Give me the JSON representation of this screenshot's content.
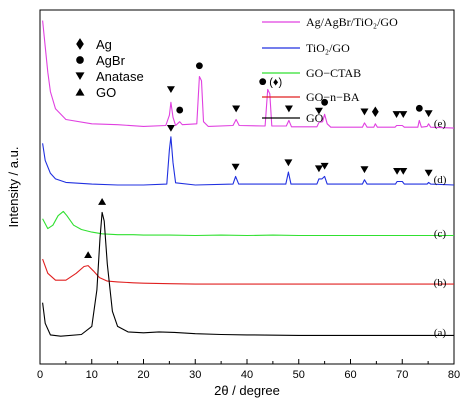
{
  "chart_data": {
    "type": "line",
    "xlabel": "2θ / degree",
    "ylabel": "Intensity / a.u.",
    "xlim": [
      0,
      80
    ],
    "xticks": [
      "0",
      "10",
      "20",
      "30",
      "40",
      "50",
      "60",
      "70",
      "80"
    ],
    "legend_position": "top-right",
    "grid": false,
    "series": [
      {
        "name": "Ag/AgBr/TiO₂/GO",
        "color": "#e040e0",
        "curve_label": "(e)",
        "offset": 4,
        "points": [
          [
            0.5,
            2.8
          ],
          [
            1,
            2.2
          ],
          [
            1.5,
            1.6
          ],
          [
            2,
            1.15
          ],
          [
            3,
            0.75
          ],
          [
            5,
            0.5
          ],
          [
            10,
            0.4
          ],
          [
            15,
            0.38
          ],
          [
            20,
            0.34
          ],
          [
            24.3,
            0.36
          ],
          [
            25.0,
            0.6
          ],
          [
            25.3,
            0.9
          ],
          [
            25.7,
            0.55
          ],
          [
            26.2,
            0.36
          ],
          [
            27.0,
            0.45
          ],
          [
            27.5,
            0.38
          ],
          [
            30.3,
            0.4
          ],
          [
            30.8,
            1.5
          ],
          [
            31.2,
            1.4
          ],
          [
            31.6,
            0.45
          ],
          [
            32.5,
            0.34
          ],
          [
            37.3,
            0.36
          ],
          [
            37.9,
            0.5
          ],
          [
            38.5,
            0.36
          ],
          [
            43.5,
            0.35
          ],
          [
            44.0,
            1.2
          ],
          [
            44.4,
            1.1
          ],
          [
            44.8,
            0.35
          ],
          [
            47.6,
            0.35
          ],
          [
            48.1,
            0.48
          ],
          [
            48.6,
            0.33
          ],
          [
            53.5,
            0.33
          ],
          [
            53.9,
            0.43
          ],
          [
            54.6,
            0.45
          ],
          [
            55.0,
            0.62
          ],
          [
            55.5,
            0.4
          ],
          [
            56.2,
            0.32
          ],
          [
            62.3,
            0.32
          ],
          [
            62.7,
            0.42
          ],
          [
            63.2,
            0.32
          ],
          [
            64.5,
            0.32
          ],
          [
            64.8,
            0.4
          ],
          [
            65.2,
            0.32
          ],
          [
            68.6,
            0.32
          ],
          [
            68.9,
            0.36
          ],
          [
            70.0,
            0.36
          ],
          [
            70.4,
            0.32
          ],
          [
            73.0,
            0.32
          ],
          [
            73.3,
            0.48
          ],
          [
            73.7,
            0.32
          ],
          [
            74.8,
            0.34
          ],
          [
            75.1,
            0.4
          ],
          [
            75.5,
            0.32
          ],
          [
            80,
            0.3
          ]
        ]
      },
      {
        "name": "TiO₂/GO",
        "color": "#2030e0",
        "curve_label": "(d)",
        "offset": 3,
        "points": [
          [
            0.5,
            1.25
          ],
          [
            1,
            0.85
          ],
          [
            2,
            0.55
          ],
          [
            3,
            0.42
          ],
          [
            5,
            0.34
          ],
          [
            10,
            0.3
          ],
          [
            15,
            0.28
          ],
          [
            20,
            0.28
          ],
          [
            24.5,
            0.3
          ],
          [
            25.0,
            1.1
          ],
          [
            25.3,
            1.4
          ],
          [
            25.7,
            0.8
          ],
          [
            26.2,
            0.33
          ],
          [
            30,
            0.28
          ],
          [
            37.3,
            0.3
          ],
          [
            37.8,
            0.48
          ],
          [
            38.4,
            0.3
          ],
          [
            47.5,
            0.3
          ],
          [
            48.0,
            0.58
          ],
          [
            48.5,
            0.3
          ],
          [
            53.5,
            0.3
          ],
          [
            53.9,
            0.42
          ],
          [
            54.5,
            0.42
          ],
          [
            55.0,
            0.48
          ],
          [
            55.5,
            0.3
          ],
          [
            62.3,
            0.3
          ],
          [
            62.7,
            0.4
          ],
          [
            63.2,
            0.3
          ],
          [
            68.7,
            0.3
          ],
          [
            69.0,
            0.36
          ],
          [
            70.0,
            0.36
          ],
          [
            70.4,
            0.3
          ],
          [
            74.8,
            0.3
          ],
          [
            75.1,
            0.34
          ],
          [
            75.5,
            0.3
          ],
          [
            80,
            0.28
          ]
        ]
      },
      {
        "name": "GO−CTAB",
        "color": "#30e030",
        "curve_label": "(c)",
        "offset": 2,
        "points": [
          [
            0.5,
            0.75
          ],
          [
            1.5,
            0.52
          ],
          [
            2.5,
            0.6
          ],
          [
            3.5,
            0.82
          ],
          [
            4.5,
            0.92
          ],
          [
            5.2,
            0.82
          ],
          [
            6.5,
            0.6
          ],
          [
            8,
            0.5
          ],
          [
            10,
            0.44
          ],
          [
            12,
            0.4
          ],
          [
            15,
            0.38
          ],
          [
            18,
            0.38
          ],
          [
            20,
            0.37
          ],
          [
            25,
            0.37
          ],
          [
            30,
            0.36
          ],
          [
            35,
            0.37
          ],
          [
            40,
            0.36
          ],
          [
            45,
            0.37
          ],
          [
            50,
            0.36
          ],
          [
            55,
            0.36
          ],
          [
            60,
            0.36
          ],
          [
            65,
            0.36
          ],
          [
            70,
            0.36
          ],
          [
            75,
            0.36
          ],
          [
            80,
            0.36
          ]
        ]
      },
      {
        "name": "GO−n−BA",
        "color": "#e02020",
        "curve_label": "(b)",
        "offset": 1,
        "points": [
          [
            0.5,
            0.95
          ],
          [
            1.5,
            0.62
          ],
          [
            3,
            0.46
          ],
          [
            5,
            0.46
          ],
          [
            7,
            0.62
          ],
          [
            8.5,
            0.78
          ],
          [
            9.3,
            0.8
          ],
          [
            10.3,
            0.68
          ],
          [
            11.5,
            0.52
          ],
          [
            13,
            0.44
          ],
          [
            15,
            0.42
          ],
          [
            18,
            0.4
          ],
          [
            20,
            0.39
          ],
          [
            25,
            0.38
          ],
          [
            30,
            0.37
          ],
          [
            35,
            0.37
          ],
          [
            40,
            0.37
          ],
          [
            45,
            0.37
          ],
          [
            50,
            0.37
          ],
          [
            55,
            0.37
          ],
          [
            60,
            0.37
          ],
          [
            65,
            0.37
          ],
          [
            70,
            0.37
          ],
          [
            75,
            0.37
          ],
          [
            80,
            0.37
          ]
        ]
      },
      {
        "name": "GO",
        "color": "#000000",
        "curve_label": "(a)",
        "offset": 0,
        "points": [
          [
            0.5,
            1.1
          ],
          [
            1,
            0.62
          ],
          [
            2,
            0.35
          ],
          [
            4,
            0.32
          ],
          [
            8,
            0.36
          ],
          [
            10,
            0.55
          ],
          [
            11,
            1.4
          ],
          [
            11.6,
            2.6
          ],
          [
            12.0,
            3.2
          ],
          [
            12.4,
            3.0
          ],
          [
            13,
            2.0
          ],
          [
            14,
            0.9
          ],
          [
            15,
            0.55
          ],
          [
            17,
            0.42
          ],
          [
            20,
            0.4
          ],
          [
            23,
            0.42
          ],
          [
            26,
            0.41
          ],
          [
            30,
            0.38
          ],
          [
            35,
            0.36
          ],
          [
            40,
            0.35
          ],
          [
            50,
            0.34
          ],
          [
            60,
            0.34
          ],
          [
            70,
            0.34
          ],
          [
            80,
            0.34
          ]
        ]
      }
    ],
    "marker_legend": [
      {
        "symbol": "diamond",
        "label": "Ag"
      },
      {
        "symbol": "circle",
        "label": "AgBr"
      },
      {
        "symbol": "triangle-down",
        "label": "Anatase"
      },
      {
        "symbol": "triangle-up",
        "label": "GO"
      }
    ],
    "markers": [
      {
        "series": 0,
        "symbol": "triangle-down",
        "x": 25.3,
        "y": 1.2
      },
      {
        "series": 0,
        "symbol": "circle",
        "x": 27.0,
        "y": 0.72
      },
      {
        "series": 0,
        "symbol": "circle",
        "x": 30.8,
        "y": 1.75
      },
      {
        "series": 0,
        "symbol": "triangle-down",
        "x": 37.9,
        "y": 0.75
      },
      {
        "series": 0,
        "symbol": "triangle-down",
        "x": 48.1,
        "y": 0.75
      },
      {
        "series": 0,
        "symbol": "triangle-down",
        "x": 53.9,
        "y": 0.7
      },
      {
        "series": 0,
        "symbol": "circle",
        "x": 55.0,
        "y": 0.9
      },
      {
        "series": 0,
        "symbol": "triangle-down",
        "x": 62.7,
        "y": 0.68
      },
      {
        "series": 0,
        "symbol": "diamond",
        "x": 64.8,
        "y": 0.68
      },
      {
        "series": 0,
        "symbol": "triangle-down",
        "x": 68.9,
        "y": 0.62
      },
      {
        "series": 0,
        "symbol": "triangle-down",
        "x": 70.2,
        "y": 0.62
      },
      {
        "series": 0,
        "symbol": "circle",
        "x": 73.3,
        "y": 0.76
      },
      {
        "series": 0,
        "symbol": "triangle-down",
        "x": 75.1,
        "y": 0.64
      },
      {
        "series": 1,
        "symbol": "triangle-down",
        "x": 25.3,
        "y": 1.6
      },
      {
        "series": 1,
        "symbol": "triangle-down",
        "x": 37.8,
        "y": 0.7
      },
      {
        "series": 1,
        "symbol": "triangle-down",
        "x": 48.0,
        "y": 0.8
      },
      {
        "series": 1,
        "symbol": "triangle-down",
        "x": 53.9,
        "y": 0.66
      },
      {
        "series": 1,
        "symbol": "triangle-down",
        "x": 55.0,
        "y": 0.72
      },
      {
        "series": 1,
        "symbol": "triangle-down",
        "x": 62.7,
        "y": 0.64
      },
      {
        "series": 1,
        "symbol": "triangle-down",
        "x": 69.0,
        "y": 0.6
      },
      {
        "series": 1,
        "symbol": "triangle-down",
        "x": 70.2,
        "y": 0.6
      },
      {
        "series": 1,
        "symbol": "triangle-down",
        "x": 75.1,
        "y": 0.56
      },
      {
        "series": 3,
        "symbol": "triangle-up",
        "x": 9.3,
        "y": 1.05
      },
      {
        "series": 4,
        "symbol": "triangle-up",
        "x": 12.0,
        "y": 3.45
      }
    ],
    "annotation": {
      "text": "(♦)",
      "series": 0,
      "x": 44.0,
      "y": 1.38
    }
  }
}
